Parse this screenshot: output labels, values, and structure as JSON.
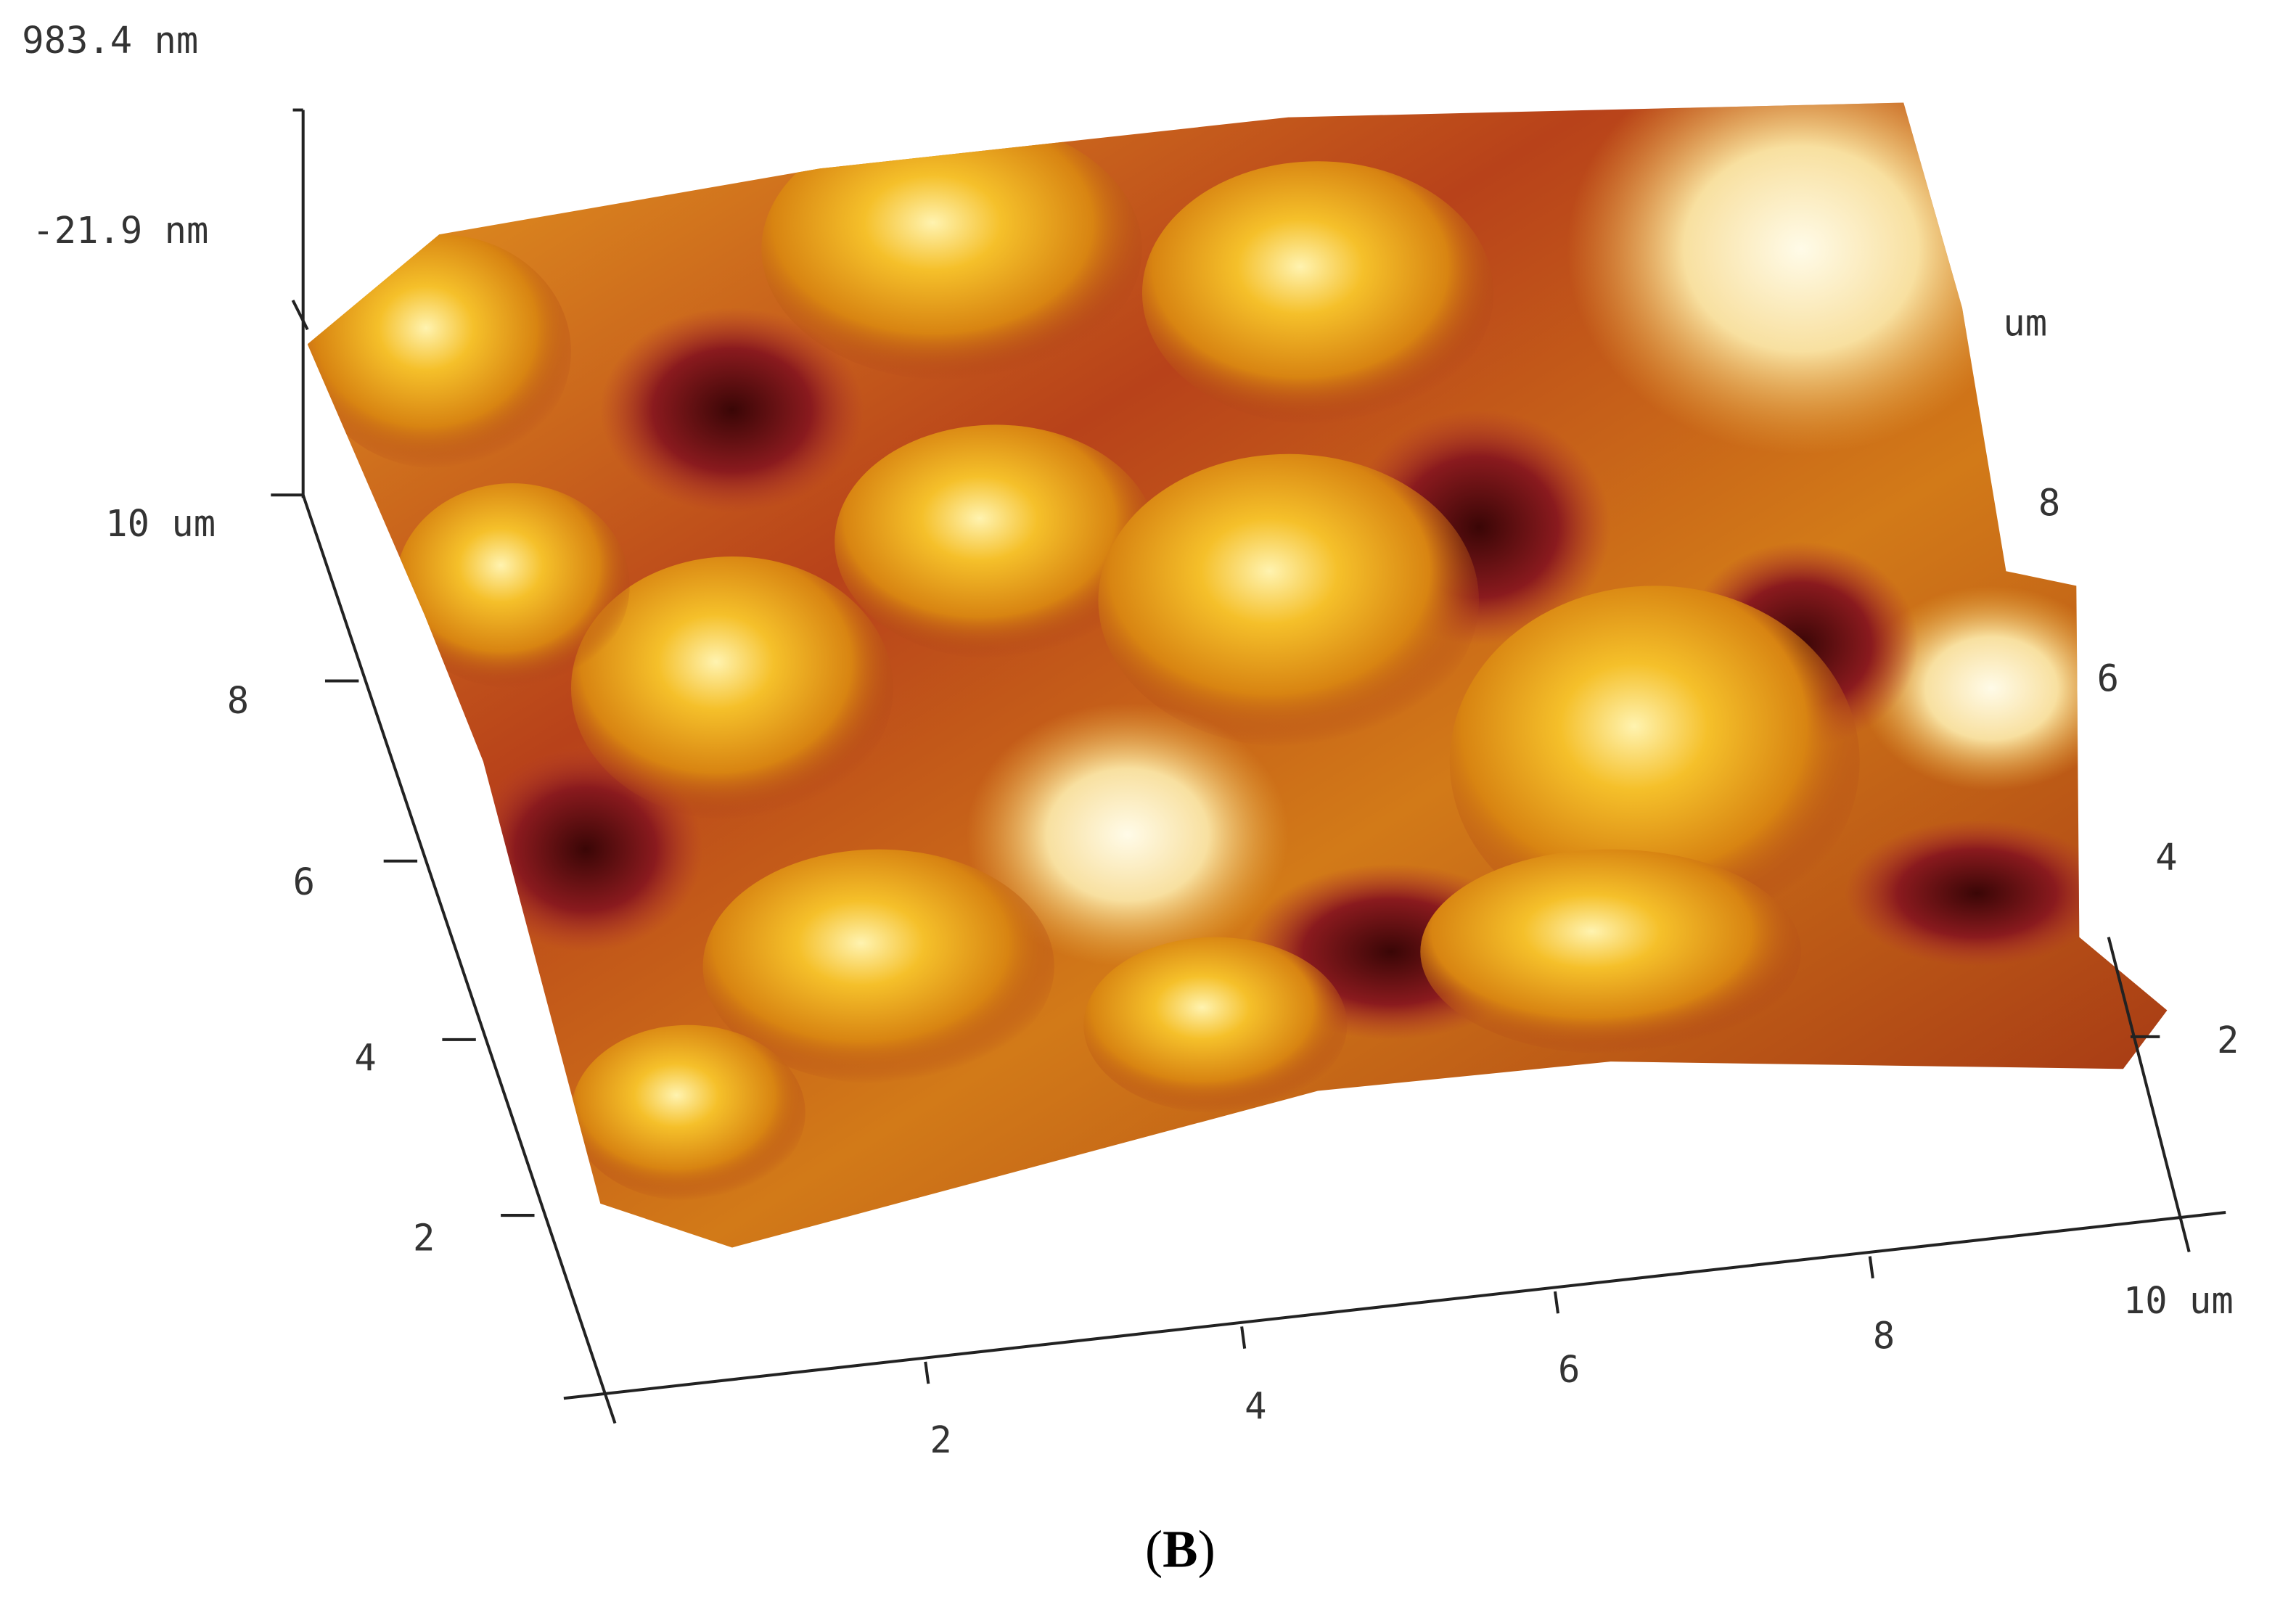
{
  "z_axis": {
    "max_label": "983.4 nm",
    "min_label": "-21.9 nm"
  },
  "left_axis": {
    "labels": [
      "10 um",
      "8",
      "6",
      "4",
      "2"
    ]
  },
  "bottom_axis": {
    "labels": [
      "2",
      "4",
      "6",
      "8",
      "10 um"
    ]
  },
  "right_axis": {
    "labels": [
      "um",
      "8",
      "6",
      "4",
      "2"
    ]
  },
  "caption": {
    "open": "(",
    "letter": "B",
    "close": ")"
  }
}
